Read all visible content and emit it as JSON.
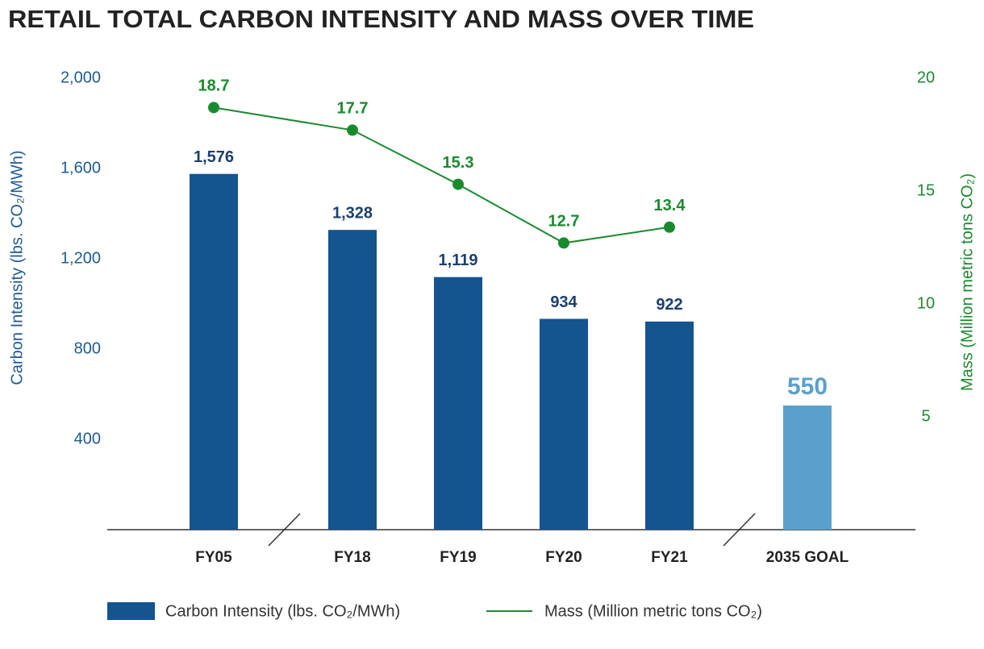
{
  "chart_data": {
    "type": "bar",
    "title": "RETAIL TOTAL CARBON INTENSITY AND MASS OVER TIME",
    "categories": [
      "FY05",
      "FY18",
      "FY19",
      "FY20",
      "FY21",
      "2035 GOAL"
    ],
    "series": [
      {
        "name": "Carbon Intensity (lbs. CO₂/MWh)",
        "type": "bar",
        "colors": [
          "#14548f",
          "#14548f",
          "#14548f",
          "#14548f",
          "#14548f",
          "#5aa0cc"
        ],
        "values": [
          1576,
          1328,
          1119,
          934,
          922,
          550
        ],
        "value_labels": [
          "1,576",
          "1,328",
          "1,119",
          "934",
          "922",
          "550"
        ]
      },
      {
        "name": "Mass (Million metric tons CO₂)",
        "type": "line",
        "axis": "y2",
        "color": "#1a8a2e",
        "values": [
          18.7,
          17.7,
          15.3,
          12.7,
          13.4,
          null
        ]
      }
    ],
    "ylabel": "Carbon Intensity (lbs. CO₂/MWh)",
    "y2label": "Mass (Million metric tons CO₂)",
    "ylim": [
      0,
      2000
    ],
    "yticks": [
      400,
      800,
      {
        "value": 1200,
        "label": "1,200"
      },
      {
        "value": 1600,
        "label": "1,600"
      },
      {
        "value": 2000,
        "label": "2,000"
      }
    ],
    "y2lim": [
      0,
      20
    ],
    "y2ticks": [
      5,
      10,
      15,
      20
    ]
  }
}
